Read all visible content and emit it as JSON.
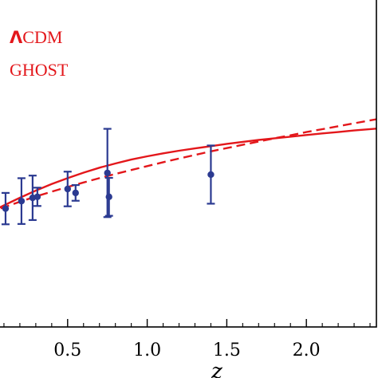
{
  "chart_data": {
    "type": "line",
    "title": "",
    "xlabel": "z",
    "ylabel": "",
    "xlim": [
      0.0,
      2.45
    ],
    "ylim": [
      0.0,
      1.0
    ],
    "x_ticks": [
      0.5,
      1.0,
      1.5,
      2.0
    ],
    "x_tick_labels": [
      "0.5",
      "1.0",
      "1.5",
      "2.0"
    ],
    "grid": false,
    "legend_position": "top-left",
    "colors": {
      "model": "#e3171b",
      "data": "#2b3a91",
      "axis": "#000000"
    },
    "legend": [
      {
        "prefix": "Λ",
        "label": "CDM",
        "style": "dashed"
      },
      {
        "prefix": "",
        "label": "GHOST",
        "style": "solid"
      }
    ],
    "series": [
      {
        "name": "ΛCDM",
        "style": "dashed",
        "x": [
          0.0,
          0.1,
          0.2,
          0.3,
          0.4,
          0.5,
          0.6,
          0.7,
          0.8,
          0.9,
          1.0,
          1.1,
          1.2,
          1.3,
          1.4,
          1.5,
          1.6,
          1.7,
          1.8,
          1.9,
          2.0,
          2.1,
          2.2,
          2.3,
          2.45
        ],
        "values": [
          0.348,
          0.366,
          0.383,
          0.399,
          0.414,
          0.428,
          0.442,
          0.455,
          0.468,
          0.48,
          0.492,
          0.504,
          0.515,
          0.526,
          0.537,
          0.547,
          0.557,
          0.567,
          0.577,
          0.586,
          0.596,
          0.605,
          0.614,
          0.623,
          0.636
        ]
      },
      {
        "name": "GHOST",
        "style": "solid",
        "x": [
          0.0,
          0.1,
          0.2,
          0.3,
          0.4,
          0.5,
          0.6,
          0.7,
          0.8,
          0.9,
          1.0,
          1.1,
          1.2,
          1.3,
          1.4,
          1.5,
          1.6,
          1.7,
          1.8,
          1.9,
          2.0,
          2.1,
          2.2,
          2.3,
          2.45
        ],
        "values": [
          0.348,
          0.372,
          0.395,
          0.417,
          0.437,
          0.455,
          0.472,
          0.487,
          0.5,
          0.512,
          0.522,
          0.531,
          0.539,
          0.546,
          0.553,
          0.56,
          0.566,
          0.572,
          0.577,
          0.582,
          0.587,
          0.592,
          0.596,
          0.601,
          0.607
        ]
      }
    ],
    "points": [
      {
        "x": 0.0,
        "y": 0.351,
        "yerr_low": 0.032,
        "yerr_high": 0.032
      },
      {
        "x": 0.11,
        "y": 0.362,
        "yerr_low": 0.048,
        "yerr_high": 0.048
      },
      {
        "x": 0.21,
        "y": 0.385,
        "yerr_low": 0.07,
        "yerr_high": 0.07
      },
      {
        "x": 0.28,
        "y": 0.395,
        "yerr_low": 0.068,
        "yerr_high": 0.068
      },
      {
        "x": 0.31,
        "y": 0.398,
        "yerr_low": 0.028,
        "yerr_high": 0.028
      },
      {
        "x": 0.5,
        "y": 0.422,
        "yerr_low": 0.053,
        "yerr_high": 0.053
      },
      {
        "x": 0.55,
        "y": 0.41,
        "yerr_low": 0.024,
        "yerr_high": 0.024
      },
      {
        "x": 0.75,
        "y": 0.471,
        "yerr_low": 0.135,
        "yerr_high": 0.135
      },
      {
        "x": 0.76,
        "y": 0.398,
        "yerr_low": 0.058,
        "yerr_high": 0.058
      },
      {
        "x": 1.4,
        "y": 0.466,
        "yerr_low": 0.089,
        "yerr_high": 0.089
      }
    ]
  }
}
